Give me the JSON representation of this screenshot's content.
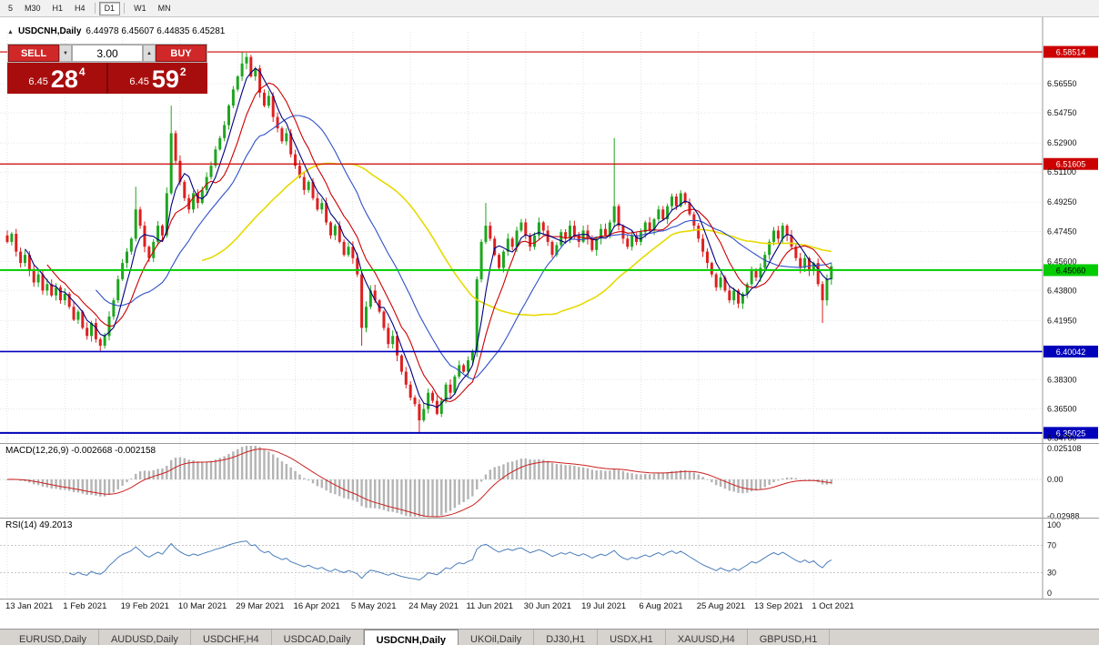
{
  "toolbar": {
    "buttons": [
      "5",
      "M30",
      "H1",
      "H4",
      "D1",
      "W1",
      "MN"
    ],
    "active": "D1"
  },
  "chart_header": {
    "symbol": "USDCNH,Daily",
    "ohlc": "6.44978 6.45607 6.44835 6.45281"
  },
  "icons": {
    "collapse": "▲",
    "spin_up": "▲",
    "spin_down": "▼"
  },
  "trade_panel": {
    "sell_label": "SELL",
    "buy_label": "BUY",
    "volume": "3.00",
    "bid_small": "6.45",
    "bid_big": "28",
    "bid_sup": "4",
    "ask_small": "6.45",
    "ask_big": "59",
    "ask_sup": "2"
  },
  "macd": {
    "title": "MACD(12,26,9)",
    "values": "-0.002668 -0.002158"
  },
  "rsi": {
    "title": "RSI(14)",
    "value": "49.2013"
  },
  "tabs": {
    "labels": [
      "EURUSD,Daily",
      "AUDUSD,Daily",
      "USDCHF,H4",
      "USDCAD,Daily",
      "USDCNH,Daily",
      "UKOil,Daily",
      "DJ30,H1",
      "USDX,H1",
      "XAUUSD,H4",
      "GBPUSD,H1"
    ],
    "active": "USDCNH,Daily"
  },
  "chart_data": {
    "type": "candlestick",
    "symbol": "USDCNH",
    "timeframe": "Daily",
    "title": "USDCNH,Daily",
    "ohlc_display": {
      "open": "6.44978",
      "high": "6.45607",
      "low": "6.44835",
      "close": "6.45281"
    },
    "ylim": [
      6.344,
      6.5975
    ],
    "closes": [
      6.468,
      6.473,
      6.462,
      6.455,
      6.46,
      6.45,
      6.443,
      6.448,
      6.438,
      6.442,
      6.435,
      6.44,
      6.432,
      6.436,
      6.428,
      6.42,
      6.425,
      6.415,
      6.41,
      6.418,
      6.408,
      6.404,
      6.41,
      6.422,
      6.432,
      6.445,
      6.455,
      6.462,
      6.47,
      6.488,
      6.478,
      6.465,
      6.458,
      6.468,
      6.478,
      6.472,
      6.498,
      6.535,
      6.518,
      6.505,
      6.495,
      6.488,
      6.498,
      6.492,
      6.5,
      6.508,
      6.515,
      6.525,
      6.532,
      6.54,
      6.552,
      6.562,
      6.57,
      6.578,
      6.582,
      6.57,
      6.575,
      6.56,
      6.552,
      6.558,
      6.545,
      6.538,
      6.53,
      6.535,
      6.522,
      6.515,
      6.508,
      6.5,
      6.505,
      6.495,
      6.488,
      6.492,
      6.48,
      6.472,
      6.478,
      6.468,
      6.46,
      6.465,
      6.458,
      6.448,
      6.415,
      6.428,
      6.438,
      6.432,
      6.425,
      6.415,
      6.405,
      6.41,
      6.398,
      6.388,
      6.38,
      6.372,
      6.368,
      6.358,
      6.365,
      6.375,
      6.37,
      6.362,
      6.37,
      6.38,
      6.375,
      6.385,
      6.392,
      6.388,
      6.395,
      6.4,
      6.445,
      6.468,
      6.478,
      6.47,
      6.46,
      6.452,
      6.462,
      6.47,
      6.465,
      6.475,
      6.48,
      6.472,
      6.465,
      6.472,
      6.48,
      6.475,
      6.468,
      6.46,
      6.466,
      6.474,
      6.47,
      6.478,
      6.472,
      6.468,
      6.475,
      6.47,
      6.463,
      6.47,
      6.476,
      6.472,
      6.48,
      6.49,
      6.478,
      6.47,
      6.465,
      6.472,
      6.468,
      6.474,
      6.48,
      6.475,
      6.482,
      6.488,
      6.482,
      6.49,
      6.496,
      6.49,
      6.498,
      6.492,
      6.485,
      6.478,
      6.47,
      6.462,
      6.455,
      6.448,
      6.44,
      6.446,
      6.438,
      6.432,
      6.438,
      6.43,
      6.436,
      6.442,
      6.45,
      6.446,
      6.452,
      6.46,
      6.468,
      6.475,
      6.47,
      6.478,
      6.472,
      6.465,
      6.458,
      6.452,
      6.458,
      6.45,
      6.455,
      6.442,
      6.432,
      6.445,
      6.453
    ],
    "wick_overrides": {
      "29": {
        "h": 6.502
      },
      "37": {
        "h": 6.552
      },
      "53": {
        "h": 6.5851
      },
      "54": {
        "h": 6.5845
      },
      "80": {
        "l": 6.404
      },
      "93": {
        "l": 6.3505
      },
      "108": {
        "h": 6.492
      },
      "137": {
        "h": 6.532
      },
      "184": {
        "l": 6.418
      }
    },
    "candle_colors": {
      "bull": "#1fa51f",
      "bear": "#dd2020"
    },
    "moving_averages": [
      {
        "period": 45,
        "color": "#e6da00",
        "width": 1.6
      },
      {
        "period": 21,
        "color": "#3050c8",
        "width": 1.1
      },
      {
        "period": 10,
        "color": "#cc0000",
        "width": 1.1
      },
      {
        "period": 5,
        "color": "#00007f",
        "width": 1.1
      }
    ],
    "levels": [
      {
        "value": 6.58514,
        "color": "#cc0000",
        "width": 1.2,
        "badge_fg": "#ffffff"
      },
      {
        "value": 6.51605,
        "color": "#cc0000",
        "width": 1.2,
        "badge_fg": "#ffffff"
      },
      {
        "value": 6.4506,
        "color": "#00cc00",
        "width": 2,
        "badge_fg": "#000000"
      },
      {
        "value": 6.40042,
        "color": "#0000bb",
        "width": 1.6,
        "badge_fg": "#ffffff"
      },
      {
        "value": 6.35025,
        "color": "#0000bb",
        "width": 2,
        "badge_fg": "#ffffff"
      }
    ],
    "indicators": {
      "macd": {
        "fast": 12,
        "slow": 26,
        "signal": 9,
        "values": [
          -0.002668,
          -0.002158
        ],
        "hist_color": "#b4b4b4",
        "signal_color": "#cc2020",
        "axis": [
          {
            "v": 0.025108,
            "t": "0.025108"
          },
          {
            "v": 0,
            "t": "0.00"
          },
          {
            "v": -0.02988,
            "t": "-0.02988"
          }
        ]
      },
      "rsi": {
        "period": 14,
        "value": 49.2013,
        "color": "#4a7ebb",
        "levels": [
          70,
          30
        ],
        "axis": [
          {
            "v": 100,
            "t": "100"
          },
          {
            "v": 70,
            "t": "70"
          },
          {
            "v": 30,
            "t": "30"
          },
          {
            "v": 0,
            "t": "0"
          }
        ]
      }
    },
    "axes": {
      "price": [
        6.5655,
        6.5475,
        6.529,
        6.511,
        6.4925,
        6.4745,
        6.456,
        6.438,
        6.4195,
        6.383,
        6.365,
        6.347
      ],
      "dates": [
        "13 Jan 2021",
        "1 Feb 2021",
        "19 Feb 2021",
        "10 Mar 2021",
        "29 Mar 2021",
        "16 Apr 2021",
        "5 May 2021",
        "24 May 2021",
        "11 Jun 2021",
        "30 Jun 2021",
        "19 Jul 2021",
        "6 Aug 2021",
        "25 Aug 2021",
        "13 Sep 2021",
        "1 Oct 2021"
      ]
    }
  }
}
